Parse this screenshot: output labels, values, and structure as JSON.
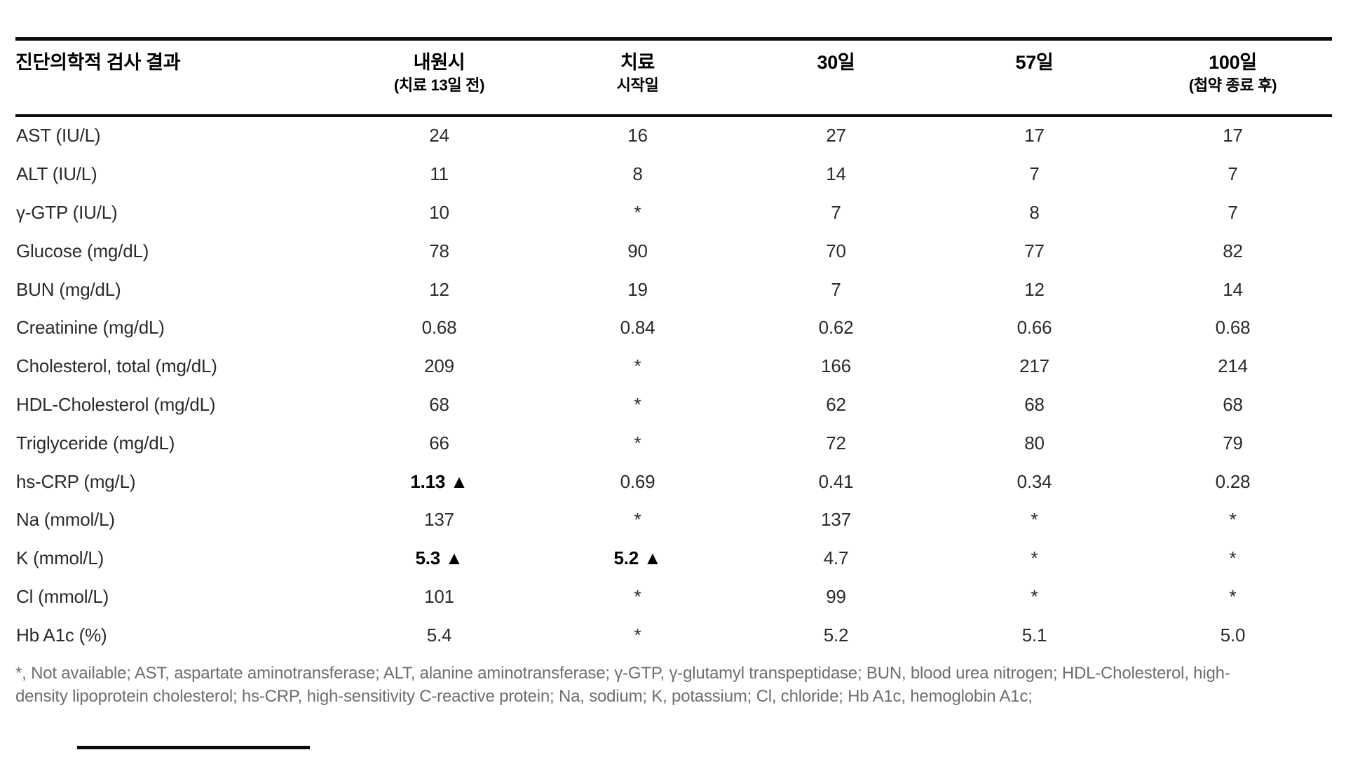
{
  "table": {
    "header": {
      "label_col": "진단의학적 검사 결과",
      "columns": [
        {
          "line1": "내원시",
          "line2": "(치료 13일 전)"
        },
        {
          "line1": "치료",
          "line2": "시작일"
        },
        {
          "line1": "30일",
          "line2": ""
        },
        {
          "line1": "57일",
          "line2": ""
        },
        {
          "line1": "100일",
          "line2": "(첩약 종료 후)"
        }
      ]
    },
    "rows": [
      {
        "label": "AST (IU/L)",
        "values": [
          "24",
          "16",
          "27",
          "17",
          "17"
        ]
      },
      {
        "label": "ALT (IU/L)",
        "values": [
          "11",
          "8",
          "14",
          "7",
          "7"
        ]
      },
      {
        "label": "γ-GTP (IU/L)",
        "values": [
          "10",
          "*",
          "7",
          "8",
          "7"
        ]
      },
      {
        "label": "Glucose (mg/dL)",
        "values": [
          "78",
          "90",
          "70",
          "77",
          "82"
        ]
      },
      {
        "label": "BUN (mg/dL)",
        "values": [
          "12",
          "19",
          "7",
          "12",
          "14"
        ]
      },
      {
        "label": "Creatinine (mg/dL)",
        "values": [
          "0.68",
          "0.84",
          "0.62",
          "0.66",
          "0.68"
        ]
      },
      {
        "label": "Cholesterol, total (mg/dL)",
        "values": [
          "209",
          "*",
          "166",
          "217",
          "214"
        ]
      },
      {
        "label": "HDL-Cholesterol (mg/dL)",
        "values": [
          "68",
          "*",
          "62",
          "68",
          "68"
        ]
      },
      {
        "label": "Triglyceride (mg/dL)",
        "values": [
          "66",
          "*",
          "72",
          "80",
          "79"
        ]
      },
      {
        "label": "hs-CRP (mg/L)",
        "values": [
          "1.13 ▲",
          "0.69",
          "0.41",
          "0.34",
          "0.28"
        ],
        "bold": [
          true,
          false,
          false,
          false,
          false
        ]
      },
      {
        "label": "Na (mmol/L)",
        "values": [
          "137",
          "*",
          "137",
          "*",
          "*"
        ]
      },
      {
        "label": "K (mmol/L)",
        "values": [
          "5.3 ▲",
          "5.2 ▲",
          "4.7",
          "*",
          "*"
        ],
        "bold": [
          true,
          true,
          false,
          false,
          false
        ]
      },
      {
        "label": "Cl (mmol/L)",
        "values": [
          "101",
          "*",
          "99",
          "*",
          "*"
        ]
      },
      {
        "label": "Hb A1c (%)",
        "values": [
          "5.4",
          "*",
          "5.2",
          "5.1",
          "5.0"
        ]
      }
    ],
    "footnote_lines": [
      "*, Not available; AST, aspartate aminotransferase; ALT, alanine aminotransferase; γ-GTP, γ-glutamyl transpeptidase; BUN, blood urea nitrogen; HDL-Cholesterol, high-",
      "density lipoprotein cholesterol; hs-CRP, high-sensitivity C-reactive protein; Na, sodium; K, potassium; Cl, chloride; Hb A1c, hemoglobin A1c;"
    ],
    "colors": {
      "rule": "#0d0d0d",
      "header_text": "#000000",
      "body_text": "#2b2b2b",
      "footnote_text": "#6e6e6e"
    }
  }
}
